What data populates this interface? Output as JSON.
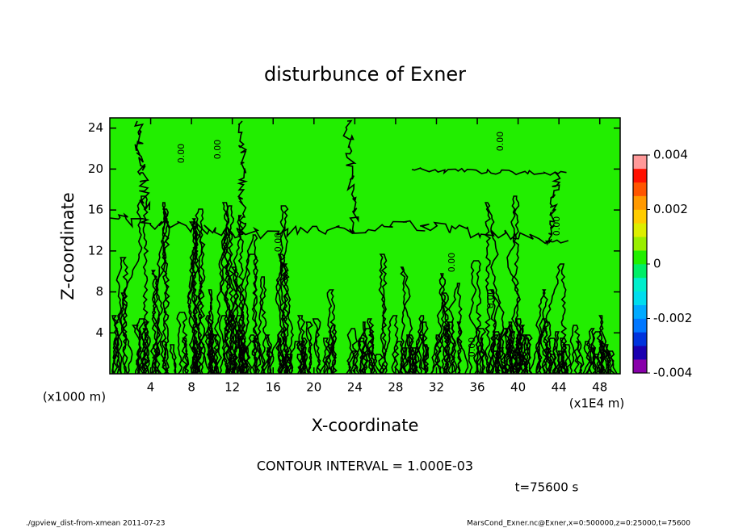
{
  "chart_data": {
    "type": "contour",
    "title": "disturbunce of Exner",
    "xlabel": "X-coordinate",
    "ylabel": "Z-coordinate",
    "x_unit_label": "(x1E4 m)",
    "y_unit_label": "(x1000 m)",
    "xlim": [
      0,
      50
    ],
    "xticks": [
      4,
      8,
      12,
      16,
      20,
      24,
      28,
      32,
      36,
      40,
      44,
      48
    ],
    "ylim": [
      0,
      25
    ],
    "yticks": [
      4,
      8,
      12,
      16,
      20,
      24
    ],
    "fill_color": "#22ee00",
    "line_color": "#000000",
    "contour_label": "0.00",
    "colorbar": {
      "lim": [
        -0.004,
        0.004
      ],
      "ticks": [
        0.004,
        0.002,
        0,
        -0.002,
        -0.004
      ],
      "colors": [
        "#8800aa",
        "#1a00b0",
        "#0033dd",
        "#0077ff",
        "#00aaff",
        "#00ddee",
        "#00eecc",
        "#00ee66",
        "#22ee00",
        "#99ee00",
        "#ddee00",
        "#ffcc00",
        "#ff9900",
        "#ff5500",
        "#ff1100",
        "#ff9999"
      ]
    },
    "contour_interval_text": "CONTOUR INTERVAL = 1.000E-03",
    "time_label": "t=75600 s",
    "footer_left": "./gpview_dist-from-xmean  2011-07-23",
    "footer_right": "MarsCond_Exner.nc@Exner,x=0:500000,z=0:25000,t=75600"
  }
}
